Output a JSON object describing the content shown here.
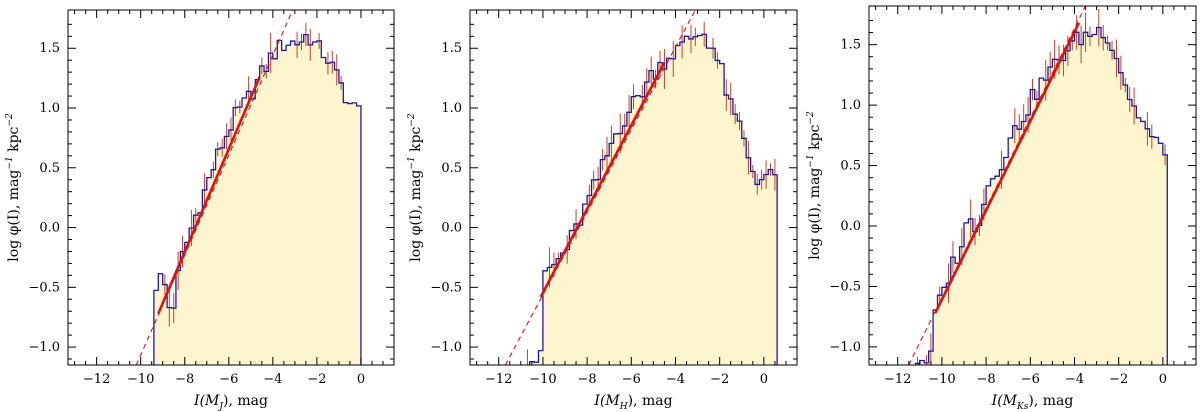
{
  "colors": {
    "fill": "#fcf5ce",
    "hist": "#1a1aa6",
    "errorbar": "#c0432b",
    "fit": "#e01010"
  },
  "chart_data": [
    {
      "type": "histogram",
      "panel": "MJ",
      "xlabel": {
        "pre": "I(",
        "var": "M",
        "sub": "J",
        "post": "), mag"
      },
      "ylabel": {
        "pre": "log φ(I), mag",
        "sup1": "−1",
        "mid": " kpc",
        "sup2": "−2"
      },
      "xlim": [
        -13.3,
        1.5
      ],
      "ylim": [
        -1.15,
        1.82
      ],
      "xticks": [
        -12,
        -10,
        -8,
        -6,
        -4,
        -2,
        0
      ],
      "yticks": [
        -1.0,
        -0.5,
        0.0,
        0.5,
        1.0,
        1.5
      ],
      "ytick_labels": [
        "−1.0",
        "−0.5",
        "0.0",
        "0.5",
        "1.0",
        "1.5"
      ],
      "xtick_labels": [
        "−12",
        "−10",
        "−8",
        "−6",
        "−4",
        "−2",
        "0"
      ],
      "hist_start": -9.4,
      "bin_width": 0.2,
      "hist_end": 0.0,
      "anchors": [
        [
          -9.4,
          -0.5
        ],
        [
          -9.0,
          -0.4
        ],
        [
          -8.6,
          -0.75
        ],
        [
          -8.2,
          -0.3
        ],
        [
          -7.6,
          0.05
        ],
        [
          -7.0,
          0.35
        ],
        [
          -6.4,
          0.65
        ],
        [
          -5.8,
          0.9
        ],
        [
          -5.2,
          1.05
        ],
        [
          -4.6,
          1.25
        ],
        [
          -4.0,
          1.45
        ],
        [
          -3.4,
          1.55
        ],
        [
          -2.8,
          1.55
        ],
        [
          -2.4,
          1.62
        ],
        [
          -2.0,
          1.5
        ],
        [
          -1.6,
          1.45
        ],
        [
          -1.2,
          1.3
        ],
        [
          -0.8,
          1.15
        ],
        [
          -0.4,
          1.0
        ],
        [
          -0.1,
          0.98
        ]
      ],
      "fit_solid": [
        [
          -9.2,
          -0.72
        ],
        [
          -4.6,
          1.26
        ]
      ],
      "fit_dashed": [
        [
          -10.2,
          -1.15
        ],
        [
          -3.1,
          1.82
        ]
      ]
    },
    {
      "type": "histogram",
      "panel": "MH",
      "xlabel": {
        "pre": "I(",
        "var": "M",
        "sub": "H",
        "post": "), mag"
      },
      "ylabel": {
        "pre": "log φ(I), mag",
        "sup1": "−1",
        "mid": " kpc",
        "sup2": "−2"
      },
      "xlim": [
        -13.3,
        1.5
      ],
      "ylim": [
        -1.15,
        1.82
      ],
      "xticks": [
        -12,
        -10,
        -8,
        -6,
        -4,
        -2,
        0
      ],
      "yticks": [
        -1.0,
        -0.5,
        0.0,
        0.5,
        1.0,
        1.5
      ],
      "ytick_labels": [
        "−1.0",
        "−0.5",
        "0.0",
        "0.5",
        "1.0",
        "1.5"
      ],
      "xtick_labels": [
        "−12",
        "−10",
        "−8",
        "−6",
        "−4",
        "−2",
        "0"
      ],
      "hist_start": -11.0,
      "bin_width": 0.2,
      "hist_end": 0.6,
      "anchors": [
        [
          -11.0,
          -1.1
        ],
        [
          -10.1,
          -1.1
        ],
        [
          -10.0,
          -0.38
        ],
        [
          -9.5,
          -0.32
        ],
        [
          -9.0,
          -0.2
        ],
        [
          -8.5,
          -0.02
        ],
        [
          -8.0,
          0.2
        ],
        [
          -7.4,
          0.45
        ],
        [
          -6.8,
          0.75
        ],
        [
          -6.2,
          0.95
        ],
        [
          -5.6,
          1.12
        ],
        [
          -5.0,
          1.3
        ],
        [
          -4.4,
          1.42
        ],
        [
          -3.8,
          1.5
        ],
        [
          -3.2,
          1.6
        ],
        [
          -2.7,
          1.63
        ],
        [
          -2.3,
          1.5
        ],
        [
          -1.9,
          1.3
        ],
        [
          -1.5,
          1.0
        ],
        [
          -1.1,
          0.85
        ],
        [
          -0.7,
          0.6
        ],
        [
          -0.4,
          0.42
        ],
        [
          0.6,
          0.42
        ]
      ],
      "fit_solid": [
        [
          -10.1,
          -0.58
        ],
        [
          -4.5,
          1.38
        ]
      ],
      "fit_dashed": [
        [
          -11.7,
          -1.15
        ],
        [
          -3.1,
          1.82
        ]
      ]
    },
    {
      "type": "histogram",
      "panel": "MKs",
      "xlabel": {
        "pre": "I(",
        "var": "M",
        "sub": "Ks",
        "post": "), mag"
      },
      "ylabel": {
        "pre": "log φ(I), mag",
        "sup1": "−1",
        "mid": " kpc",
        "sup2": "−2"
      },
      "xlim": [
        -13.3,
        1.5
      ],
      "ylim": [
        -1.15,
        1.82
      ],
      "xticks": [
        -12,
        -10,
        -8,
        -6,
        -4,
        -2,
        0
      ],
      "yticks": [
        -1.0,
        -0.5,
        0.0,
        0.5,
        1.0,
        1.5
      ],
      "ytick_labels": [
        "−1.0",
        "−0.5",
        "0.0",
        "0.5",
        "1.0",
        "1.5"
      ],
      "xtick_labels": [
        "−12",
        "−10",
        "−8",
        "−6",
        "−4",
        "−2",
        "0"
      ],
      "hist_start": -11.2,
      "bin_width": 0.2,
      "hist_end": 0.2,
      "anchors": [
        [
          -11.2,
          -1.1
        ],
        [
          -10.5,
          -1.1
        ],
        [
          -10.4,
          -0.75
        ],
        [
          -10.0,
          -0.6
        ],
        [
          -9.6,
          -0.35
        ],
        [
          -9.2,
          -0.2
        ],
        [
          -8.8,
          0.05
        ],
        [
          -8.4,
          0.0
        ],
        [
          -8.0,
          0.3
        ],
        [
          -7.4,
          0.5
        ],
        [
          -6.8,
          0.75
        ],
        [
          -6.2,
          0.95
        ],
        [
          -5.6,
          1.15
        ],
        [
          -5.0,
          1.3
        ],
        [
          -4.4,
          1.45
        ],
        [
          -3.8,
          1.55
        ],
        [
          -3.2,
          1.6
        ],
        [
          -2.6,
          1.63
        ],
        [
          -2.2,
          1.45
        ],
        [
          -1.8,
          1.25
        ],
        [
          -1.4,
          1.0
        ],
        [
          -1.0,
          0.9
        ],
        [
          -0.6,
          0.75
        ],
        [
          -0.2,
          0.65
        ],
        [
          0.2,
          0.65
        ]
      ],
      "fit_solid": [
        [
          -10.3,
          -0.72
        ],
        [
          -3.8,
          1.68
        ]
      ],
      "fit_dashed": [
        [
          -11.5,
          -1.15
        ],
        [
          -3.5,
          1.82
        ]
      ]
    }
  ]
}
